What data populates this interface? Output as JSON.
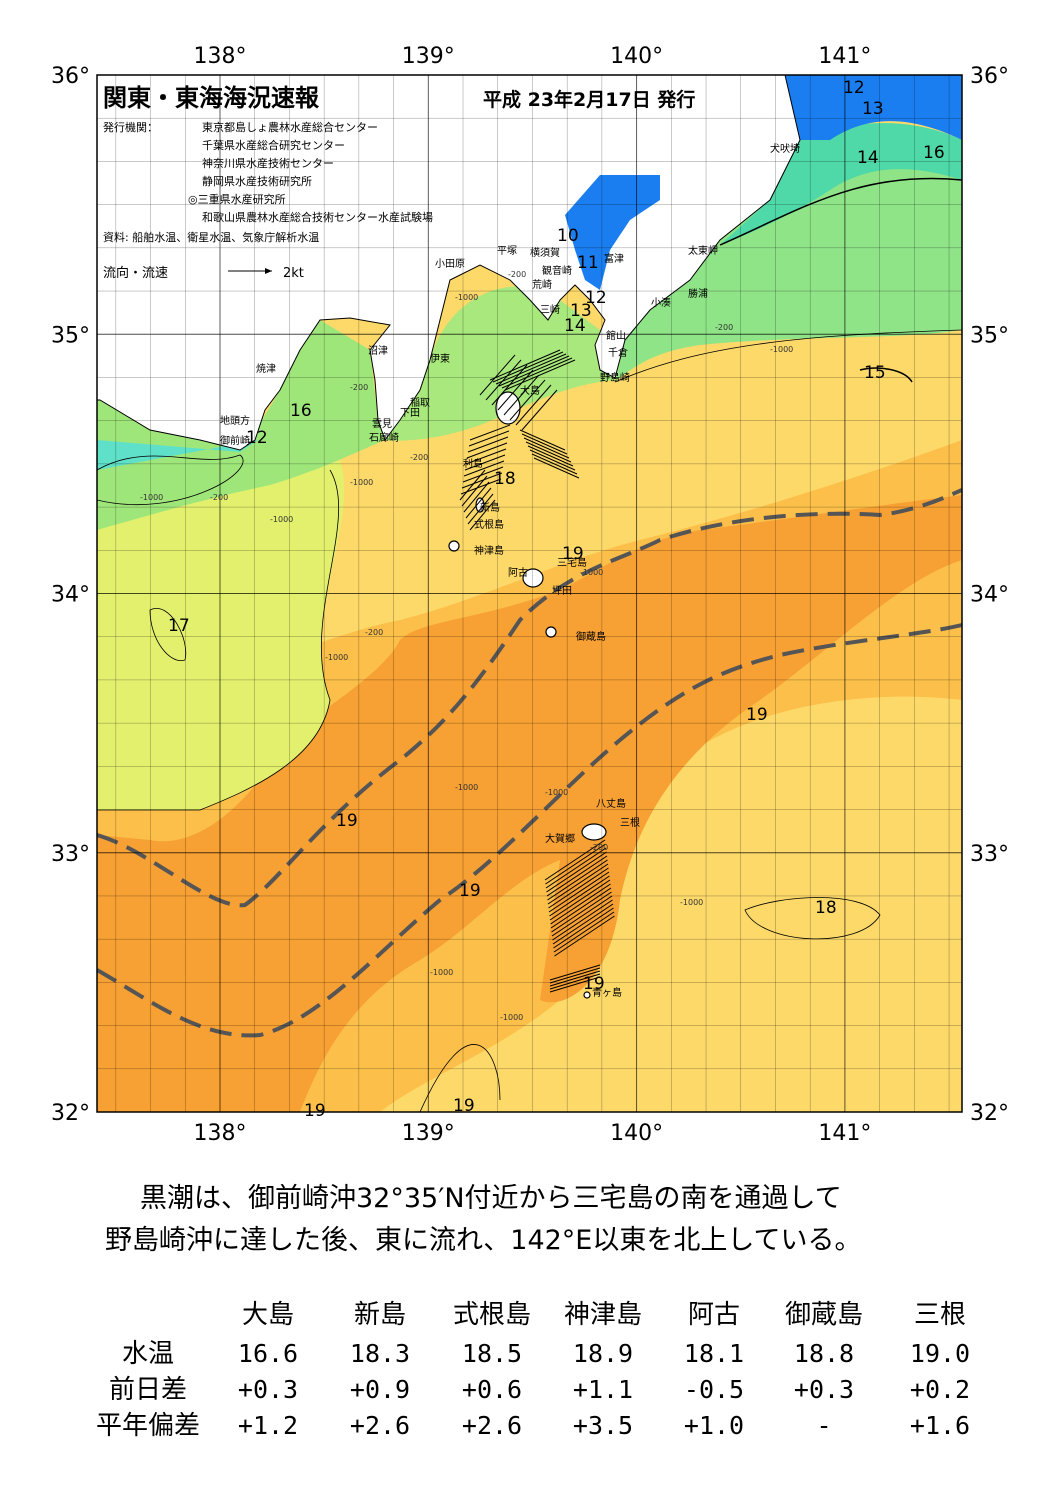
{
  "header": {
    "title": "関東・東海海況速報",
    "date": "平成 23年2月17日 発行",
    "publisher_label": "発行機関：",
    "publishers": [
      "東京都島しょ農林水産総合センター",
      "千葉県水産総合研究センター",
      "神奈川県水産技術センター",
      "静岡県水産技術研究所",
      "◎三重県水産研究所",
      "和歌山県農林水産総合技術センター水産試験場"
    ],
    "sources": "資料: 船舶水温、衛星水温、気象庁解析水温",
    "legend_label": "流向・流速",
    "legend_speed": "2kt"
  },
  "map": {
    "lon_labels": [
      "138°",
      "139°",
      "140°",
      "141°"
    ],
    "lat_labels": [
      "36°",
      "35°",
      "34°",
      "33°",
      "32°"
    ],
    "places": [
      "犬吠埼",
      "太東岬",
      "勝浦",
      "小湊",
      "富津",
      "横須賀",
      "平塚",
      "観音崎",
      "荒崎",
      "小田原",
      "三崎",
      "館山",
      "千倉",
      "野島崎",
      "沼津",
      "伊東",
      "焼津",
      "稲取",
      "下田",
      "雲見",
      "石廊崎",
      "地頭方",
      "御前崎",
      "大島",
      "利島",
      "新島",
      "式根島",
      "神津島",
      "三宅島",
      "阿古",
      "坪田",
      "御蔵島",
      "八丈島",
      "三根",
      "大賀郷",
      "青ヶ島"
    ],
    "contour_labels": [
      "12",
      "13",
      "14",
      "16",
      "10",
      "11",
      "12",
      "13",
      "14",
      "15",
      "16",
      "12",
      "18",
      "19",
      "17",
      "19",
      "19",
      "19",
      "18",
      "19",
      "19",
      "19"
    ],
    "depth_labels": [
      "-200",
      "-200",
      "-1000",
      "-200",
      "-1000",
      "-200",
      "-1000",
      "-200",
      "-1000",
      "-200",
      "-1000",
      "-1000",
      "-1000",
      "-1000",
      "-1000",
      "-1000",
      "-200",
      "-1000",
      "-1000"
    ]
  },
  "summary": [
    "黒潮は、御前崎沖32°35′N付近から三宅島の南を通過して",
    "野島崎沖に達した後、東に流れ、142°E以東を北上している。"
  ],
  "table": {
    "columns": [
      "大島",
      "新島",
      "式根島",
      "神津島",
      "阿古",
      "御蔵島",
      "三根"
    ],
    "rows": [
      {
        "label": "水温",
        "cells": [
          "16.6",
          "18.3",
          "18.5",
          "18.9",
          "18.1",
          "18.8",
          "19.0"
        ]
      },
      {
        "label": "前日差",
        "cells": [
          "+0.3",
          "+0.9",
          "+0.6",
          "+1.1",
          "-0.5",
          "+0.3",
          "+0.2"
        ]
      },
      {
        "label": "平年偏差",
        "cells": [
          "+1.2",
          "+2.6",
          "+2.6",
          "+3.5",
          "+1.0",
          "-",
          "+1.6"
        ]
      }
    ]
  }
}
